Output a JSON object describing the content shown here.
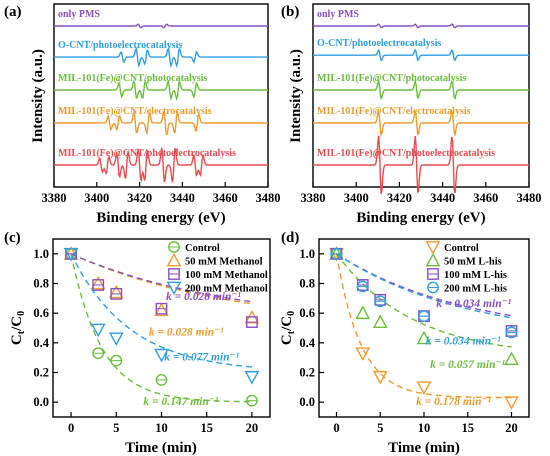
{
  "colors": {
    "purple": "#8b4fc0",
    "blue": "#2f9ee4",
    "green": "#6abf3a",
    "orange": "#f09a2e",
    "red": "#ea4b4f"
  },
  "chart_data": [
    {
      "id": "a",
      "type": "line",
      "panel_label": "(a)",
      "xlabel": "Binding energy (eV)",
      "ylabel": "Intensity (a.u.)",
      "xlim": [
        3380,
        3480
      ],
      "xticks": [
        3380,
        3400,
        3420,
        3440,
        3460,
        3480
      ],
      "series": [
        {
          "name": "only PMS",
          "color": "#8b4fc0",
          "baseline": 0.88,
          "lines": [
            [
              3420,
              0.01
            ],
            [
              3432,
              -0.01
            ]
          ]
        },
        {
          "name": "O-CNT/photoelectrocatalysis",
          "color": "#2f9ee4",
          "baseline": 0.71,
          "lines": [
            [
              3412,
              0.03
            ],
            [
              3419,
              0.05
            ],
            [
              3423,
              -0.04
            ],
            [
              3434,
              0.05
            ],
            [
              3438,
              -0.05
            ],
            [
              3446,
              -0.03
            ]
          ]
        },
        {
          "name": "MIL-101(Fe)@CNT/photocatalysis",
          "color": "#6abf3a",
          "baseline": 0.53,
          "lines": [
            [
              3411,
              0.04
            ],
            [
              3418,
              0.05
            ],
            [
              3422,
              -0.05
            ],
            [
              3434,
              0.05
            ],
            [
              3438,
              -0.05
            ],
            [
              3446,
              -0.04
            ]
          ]
        },
        {
          "name": "MIL-101(Fe)@CNT/electrocatalysis",
          "color": "#f09a2e",
          "baseline": 0.35,
          "lines": [
            [
              3406,
              0.04
            ],
            [
              3410,
              -0.04
            ],
            [
              3418,
              0.06
            ],
            [
              3424,
              -0.06
            ],
            [
              3432,
              0.07
            ],
            [
              3437,
              -0.06
            ],
            [
              3447,
              -0.05
            ]
          ]
        },
        {
          "name": "MIL-101(Fe)@CNT/photoelectrocatalysis",
          "color": "#ea4b4f",
          "baseline": 0.12,
          "lines": [
            [
              3402,
              0.04
            ],
            [
              3405,
              -0.05
            ],
            [
              3410,
              0.07
            ],
            [
              3414,
              -0.08
            ],
            [
              3420,
              0.09
            ],
            [
              3423,
              -0.09
            ],
            [
              3431,
              0.1
            ],
            [
              3436,
              -0.1
            ],
            [
              3446,
              0.06
            ],
            [
              3449,
              -0.06
            ]
          ]
        }
      ]
    },
    {
      "id": "b",
      "type": "line",
      "panel_label": "(b)",
      "xlabel": "Binding energy (eV)",
      "ylabel": "Intensity (a.u.)",
      "xlim": [
        3380,
        3480
      ],
      "xticks": [
        3380,
        3400,
        3420,
        3440,
        3460,
        3480
      ],
      "series": [
        {
          "name": "only PMS",
          "color": "#8b4fc0",
          "baseline": 0.88,
          "lines": [
            [
              3411,
              0.01
            ],
            [
              3428,
              0.01
            ],
            [
              3445,
              0.01
            ]
          ]
        },
        {
          "name": "O-CNT/photoelectrocatalysis",
          "color": "#2f9ee4",
          "baseline": 0.72,
          "lines": [
            [
              3411,
              0.03
            ],
            [
              3428,
              0.03
            ],
            [
              3445,
              0.03
            ]
          ]
        },
        {
          "name": "MIL-101(Fe)@CNT/photocatalysis",
          "color": "#6abf3a",
          "baseline": 0.53,
          "lines": [
            [
              3411,
              0.05
            ],
            [
              3428,
              0.05
            ],
            [
              3445,
              0.05
            ]
          ]
        },
        {
          "name": "MIL-101(Fe)@CNT/electrocatalysis",
          "color": "#f09a2e",
          "baseline": 0.35,
          "lines": [
            [
              3411,
              0.07
            ],
            [
              3428,
              0.07
            ],
            [
              3445,
              0.07
            ]
          ]
        },
        {
          "name": "MIL-101(Fe)@CNT/photoelectrocatalysis",
          "color": "#ea4b4f",
          "baseline": 0.12,
          "lines": [
            [
              3411,
              0.17
            ],
            [
              3428,
              0.17
            ],
            [
              3445,
              0.17
            ]
          ]
        }
      ]
    },
    {
      "id": "c",
      "type": "scatter",
      "panel_label": "(c)",
      "xlabel": "Time (min)",
      "ylabel": "Ct/C0",
      "xlim": [
        -2,
        22
      ],
      "ylim": [
        -0.1,
        1.1
      ],
      "xticks": [
        0,
        5,
        10,
        15,
        20
      ],
      "yticks": [
        0.0,
        0.2,
        0.4,
        0.6,
        0.8,
        1.0
      ],
      "x": [
        0,
        3,
        5,
        10,
        20
      ],
      "series": [
        {
          "name": "Control",
          "marker": "circle",
          "color": "#6abf3a",
          "values": [
            1.0,
            0.33,
            0.28,
            0.15,
            0.01
          ],
          "k": 0.147,
          "plateau": 0.0
        },
        {
          "name": "50 mM Methanol",
          "marker": "triangle-up",
          "color": "#f09a2e",
          "values": [
            1.0,
            0.8,
            0.74,
            0.62,
            0.57
          ],
          "k": 0.028,
          "plateau": 0.5
        },
        {
          "name": "100 mM Methanol",
          "marker": "square",
          "color": "#8b4fc0",
          "values": [
            1.0,
            0.79,
            0.73,
            0.63,
            0.54
          ],
          "k": 0.028,
          "plateau": 0.52
        },
        {
          "name": "200 mM Methanol",
          "marker": "triangle-down",
          "color": "#2f9ee4",
          "values": [
            1.0,
            0.49,
            0.43,
            0.32,
            0.17
          ],
          "k": 0.077,
          "plateau": 0.2
        }
      ],
      "annotations": [
        {
          "text": "k = 0.028 min⁻¹",
          "color": "#8b4fc0",
          "x": 10.5,
          "y": 0.69
        },
        {
          "text": "k = 0.028 min⁻¹",
          "color": "#f09a2e",
          "x": 8.6,
          "y": 0.45
        },
        {
          "text": "k = 0.077 min⁻¹",
          "color": "#2f9ee4",
          "x": 10.3,
          "y": 0.28
        },
        {
          "text": "k = 0.147 min⁻¹",
          "color": "#6abf3a",
          "x": 8.0,
          "y": -0.02
        }
      ]
    },
    {
      "id": "d",
      "type": "scatter",
      "panel_label": "(d)",
      "xlabel": "Time (min)",
      "ylabel": "Ct/C0",
      "xlim": [
        -2,
        22
      ],
      "ylim": [
        -0.1,
        1.1
      ],
      "xticks": [
        0,
        5,
        10,
        15,
        20
      ],
      "yticks": [
        0.0,
        0.2,
        0.4,
        0.6,
        0.8,
        1.0
      ],
      "x": [
        0,
        3,
        5,
        10,
        20
      ],
      "series": [
        {
          "name": "Control",
          "marker": "triangle-down",
          "color": "#f09a2e",
          "values": [
            1.0,
            0.33,
            0.17,
            0.1,
            0.0
          ],
          "k": 0.178,
          "plateau": 0.03
        },
        {
          "name": "50 mM L-his",
          "marker": "triangle-up",
          "color": "#6abf3a",
          "values": [
            1.0,
            0.6,
            0.54,
            0.43,
            0.29
          ],
          "k": 0.057,
          "plateau": 0.3
        },
        {
          "name": "100 mM L-his",
          "marker": "square",
          "color": "#8b4fc0",
          "values": [
            1.0,
            0.79,
            0.69,
            0.58,
            0.48
          ],
          "k": 0.034,
          "plateau": 0.44
        },
        {
          "name": "200 mM L-his",
          "marker": "circle",
          "color": "#2f9ee4",
          "values": [
            1.0,
            0.78,
            0.68,
            0.58,
            0.47
          ],
          "k": 0.034,
          "plateau": 0.42
        }
      ],
      "annotations": [
        {
          "text": "k = 0.034 min⁻¹",
          "color": "#8b4fc0",
          "x": 11.4,
          "y": 0.64
        },
        {
          "text": "k = 0.034 min⁻¹",
          "color": "#2f9ee4",
          "x": 10.2,
          "y": 0.39
        },
        {
          "text": "k = 0.057 min⁻¹",
          "color": "#6abf3a",
          "x": 10.7,
          "y": 0.23
        },
        {
          "text": "k = 0.178 min⁻¹",
          "color": "#f09a2e",
          "x": 9.1,
          "y": -0.02
        }
      ]
    }
  ]
}
